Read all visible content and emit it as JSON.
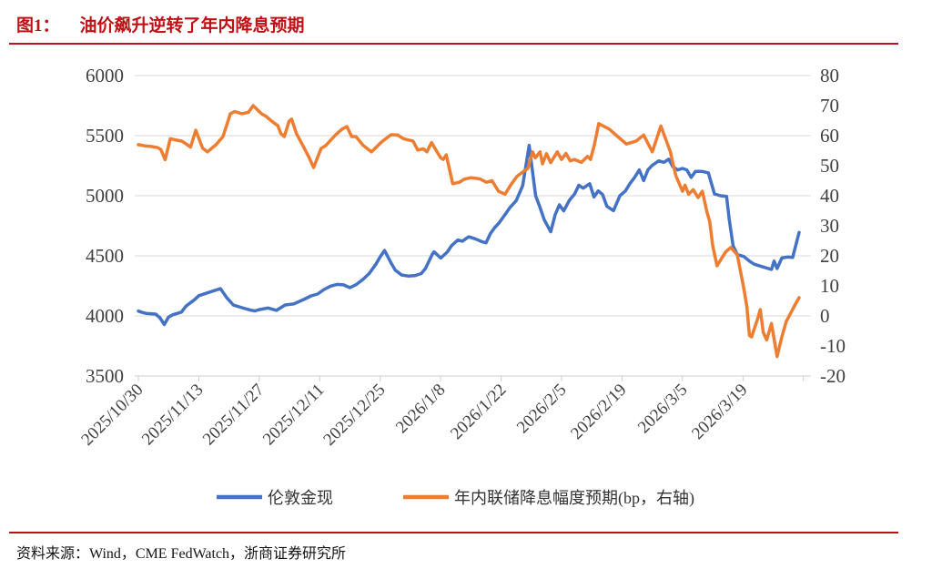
{
  "title": {
    "prefix": "图1：",
    "text": "油价飙升逆转了年内降息预期"
  },
  "source": "资料来源：Wind，CME FedWatch，浙商证券研究所",
  "colors": {
    "title_red": "#c01014",
    "rule_red": "#b5121a",
    "series_blue": "#4472C4",
    "series_orange": "#ED7D31",
    "gridline": "#d9d9d9",
    "axis_text": "#404040"
  },
  "legend": [
    {
      "label": "伦敦金现",
      "color": "#4472C4"
    },
    {
      "label": "年内联储降息幅度预期(bp，右轴)",
      "color": "#ED7D31"
    }
  ],
  "chart_data": {
    "type": "line",
    "title": "油价飙升逆转了年内降息预期",
    "grid": true,
    "legend_position": "bottom",
    "left_axis": {
      "min": 3500,
      "max": 6000,
      "ticks": [
        6000,
        5500,
        5000,
        4500,
        4000,
        3500
      ]
    },
    "right_axis": {
      "min": -20,
      "max": 80,
      "ticks": [
        80,
        70,
        60,
        50,
        40,
        30,
        20,
        10,
        0,
        -10,
        -20
      ]
    },
    "x_tick_labels": [
      "2025/10/30",
      "2025/11/13",
      "2025/11/27",
      "2025/12/11",
      "2025/12/25",
      "2026/1/8",
      "2026/1/22",
      "2026/2/5",
      "2026/2/19",
      "2026/3/5",
      "2026/3/19"
    ],
    "x_tick_interval_days": 14,
    "x_day_span": 153,
    "series": [
      {
        "name": "伦敦金现",
        "axis": "left",
        "color": "#4472C4",
        "points": [
          [
            0,
            4040
          ],
          [
            1,
            4028
          ],
          [
            2,
            4020
          ],
          [
            4,
            4015
          ],
          [
            5,
            3985
          ],
          [
            6,
            3928
          ],
          [
            7,
            3990
          ],
          [
            8,
            4010
          ],
          [
            10,
            4032
          ],
          [
            11,
            4080
          ],
          [
            13,
            4135
          ],
          [
            14,
            4168
          ],
          [
            16,
            4192
          ],
          [
            19,
            4227
          ],
          [
            20.5,
            4150
          ],
          [
            22,
            4090
          ],
          [
            24,
            4068
          ],
          [
            26,
            4048
          ],
          [
            27,
            4042
          ],
          [
            28,
            4052
          ],
          [
            30,
            4066
          ],
          [
            32,
            4046
          ],
          [
            34,
            4091
          ],
          [
            36,
            4100
          ],
          [
            38.5,
            4140
          ],
          [
            40,
            4167
          ],
          [
            41.5,
            4182
          ],
          [
            43,
            4220
          ],
          [
            44.5,
            4248
          ],
          [
            46,
            4262
          ],
          [
            47.5,
            4258
          ],
          [
            49,
            4235
          ],
          [
            50.5,
            4262
          ],
          [
            52,
            4303
          ],
          [
            53.5,
            4355
          ],
          [
            55,
            4430
          ],
          [
            56,
            4492
          ],
          [
            57,
            4545
          ],
          [
            58.5,
            4442
          ],
          [
            59.5,
            4380
          ],
          [
            61,
            4340
          ],
          [
            62.5,
            4332
          ],
          [
            64,
            4335
          ],
          [
            65.5,
            4352
          ],
          [
            66.5,
            4395
          ],
          [
            68,
            4510
          ],
          [
            68.5,
            4533
          ],
          [
            70,
            4482
          ],
          [
            71.5,
            4530
          ],
          [
            72.5,
            4583
          ],
          [
            74,
            4632
          ],
          [
            75,
            4621
          ],
          [
            76.5,
            4658
          ],
          [
            78,
            4642
          ],
          [
            79.5,
            4618
          ],
          [
            80.5,
            4608
          ],
          [
            81.5,
            4684
          ],
          [
            82.5,
            4735
          ],
          [
            83.5,
            4773
          ],
          [
            85,
            4848
          ],
          [
            86,
            4900
          ],
          [
            87.5,
            4960
          ],
          [
            89,
            5085
          ],
          [
            90.5,
            5420
          ],
          [
            92,
            5000
          ],
          [
            92.8,
            4924
          ],
          [
            94,
            4800
          ],
          [
            95.5,
            4700
          ],
          [
            96.5,
            4840
          ],
          [
            97.5,
            4924
          ],
          [
            98.5,
            4874
          ],
          [
            99.8,
            4962
          ],
          [
            101,
            5013
          ],
          [
            102,
            5088
          ],
          [
            103,
            5063
          ],
          [
            104.5,
            5100
          ],
          [
            105.5,
            4990
          ],
          [
            106.5,
            5040
          ],
          [
            107.5,
            5010
          ],
          [
            108.5,
            4912
          ],
          [
            110,
            4876
          ],
          [
            111.5,
            5000
          ],
          [
            112.8,
            5040
          ],
          [
            113.8,
            5100
          ],
          [
            114.9,
            5152
          ],
          [
            116,
            5215
          ],
          [
            117,
            5126
          ],
          [
            118,
            5215
          ],
          [
            119,
            5253
          ],
          [
            120.5,
            5290
          ],
          [
            121.7,
            5278
          ],
          [
            122.8,
            5304
          ],
          [
            123.8,
            5240
          ],
          [
            124.9,
            5215
          ],
          [
            126,
            5227
          ],
          [
            127,
            5215
          ],
          [
            128,
            5152
          ],
          [
            129,
            5202
          ],
          [
            130.6,
            5202
          ],
          [
            132,
            5190
          ],
          [
            133.4,
            5015
          ],
          [
            134.8,
            5000
          ],
          [
            136.2,
            4995
          ],
          [
            136.8,
            4810
          ],
          [
            137.7,
            4585
          ],
          [
            138.7,
            4510
          ],
          [
            140.2,
            4495
          ],
          [
            141.5,
            4456
          ],
          [
            142.6,
            4430
          ],
          [
            143.6,
            4419
          ],
          [
            144.7,
            4407
          ],
          [
            146.6,
            4386
          ],
          [
            147.2,
            4456
          ],
          [
            147.9,
            4394
          ],
          [
            149,
            4482
          ],
          [
            150.3,
            4490
          ],
          [
            151.5,
            4486
          ],
          [
            153,
            4695
          ]
        ]
      },
      {
        "name": "年内联储降息幅度预期(bp，右轴)",
        "axis": "right",
        "color": "#ED7D31",
        "points": [
          [
            0,
            57
          ],
          [
            1.5,
            56.6
          ],
          [
            3,
            56.4
          ],
          [
            4.5,
            56
          ],
          [
            5.2,
            55.4
          ],
          [
            6.2,
            52
          ],
          [
            7.4,
            59
          ],
          [
            8.5,
            58.6
          ],
          [
            10,
            58.2
          ],
          [
            10.6,
            57.7
          ],
          [
            12.1,
            56.2
          ],
          [
            13.3,
            61.8
          ],
          [
            14.9,
            55.8
          ],
          [
            16,
            54.6
          ],
          [
            18,
            57
          ],
          [
            19.6,
            59.7
          ],
          [
            21.3,
            67.3
          ],
          [
            22.3,
            68
          ],
          [
            24,
            67.3
          ],
          [
            25.5,
            67.8
          ],
          [
            26.6,
            70
          ],
          [
            28.5,
            67.3
          ],
          [
            29.6,
            66.4
          ],
          [
            30.9,
            64.8
          ],
          [
            32.3,
            63.3
          ],
          [
            33,
            60.7
          ],
          [
            33.8,
            59.7
          ],
          [
            34.9,
            64.8
          ],
          [
            35.5,
            65.5
          ],
          [
            36.6,
            60.7
          ],
          [
            38.1,
            56.7
          ],
          [
            39.4,
            53.1
          ],
          [
            40.6,
            49.4
          ],
          [
            42.3,
            55.7
          ],
          [
            43.4,
            56.7
          ],
          [
            45.7,
            60.3
          ],
          [
            47.2,
            62.2
          ],
          [
            48.3,
            63
          ],
          [
            49.4,
            59.7
          ],
          [
            50.4,
            59.7
          ],
          [
            52.1,
            56.7
          ],
          [
            54,
            54.6
          ],
          [
            56.4,
            58
          ],
          [
            58.5,
            60.3
          ],
          [
            60,
            60.2
          ],
          [
            61.5,
            58.9
          ],
          [
            63.6,
            58.2
          ],
          [
            64.7,
            55.2
          ],
          [
            66,
            55.6
          ],
          [
            66.8,
            54.6
          ],
          [
            67.9,
            57.7
          ],
          [
            69,
            55
          ],
          [
            70,
            52.6
          ],
          [
            70.6,
            52.1
          ],
          [
            71.3,
            53.6
          ],
          [
            72.8,
            44
          ],
          [
            74.3,
            44.5
          ],
          [
            75.5,
            45.5
          ],
          [
            77,
            46
          ],
          [
            79.1,
            45.6
          ],
          [
            80.6,
            44.5
          ],
          [
            81.9,
            45
          ],
          [
            83.4,
            41.5
          ],
          [
            84.9,
            40.5
          ],
          [
            86.2,
            43.5
          ],
          [
            87.7,
            46.5
          ],
          [
            89.1,
            48
          ],
          [
            90.2,
            49.1
          ],
          [
            91.3,
            54.6
          ],
          [
            91.9,
            52.6
          ],
          [
            93,
            54.6
          ],
          [
            93.6,
            50.6
          ],
          [
            94.5,
            54
          ],
          [
            95.5,
            51
          ],
          [
            97,
            54.6
          ],
          [
            98,
            52.1
          ],
          [
            99,
            54.1
          ],
          [
            100,
            51.6
          ],
          [
            101,
            52.1
          ],
          [
            102.6,
            51.1
          ],
          [
            104,
            53.1
          ],
          [
            104.7,
            52.1
          ],
          [
            105.6,
            57
          ],
          [
            106.6,
            64
          ],
          [
            109,
            62.2
          ],
          [
            111,
            59.7
          ],
          [
            113,
            57.2
          ],
          [
            115.3,
            58.2
          ],
          [
            117,
            60.2
          ],
          [
            119,
            54.6
          ],
          [
            121,
            63.2
          ],
          [
            123.2,
            54.6
          ],
          [
            123.8,
            50.6
          ],
          [
            124.5,
            46.5
          ],
          [
            126,
            41.5
          ],
          [
            126.6,
            43.5
          ],
          [
            127.4,
            40.5
          ],
          [
            128.5,
            42
          ],
          [
            129.6,
            39.4
          ],
          [
            130.6,
            41.5
          ],
          [
            131.7,
            34.4
          ],
          [
            132.3,
            31.4
          ],
          [
            133,
            23.3
          ],
          [
            134,
            16.7
          ],
          [
            136,
            21.3
          ],
          [
            137.2,
            22.8
          ],
          [
            138.7,
            20.3
          ],
          [
            140.2,
            9.2
          ],
          [
            140.9,
            3.1
          ],
          [
            141.5,
            -6.5
          ],
          [
            142,
            -7
          ],
          [
            143.4,
            -1
          ],
          [
            144,
            2.1
          ],
          [
            144.7,
            -5.5
          ],
          [
            145.5,
            -8
          ],
          [
            146.6,
            -2.5
          ],
          [
            147.9,
            -13.5
          ],
          [
            149,
            -7
          ],
          [
            150,
            -1.9
          ],
          [
            151,
            0.8
          ],
          [
            152.1,
            3.8
          ],
          [
            153,
            6.1
          ]
        ]
      }
    ]
  }
}
